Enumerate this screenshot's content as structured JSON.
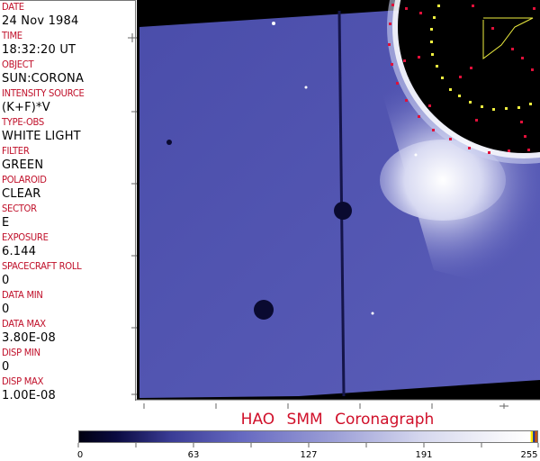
{
  "fields": [
    {
      "label": "DATE",
      "value": "24 Nov 1984"
    },
    {
      "label": "TIME",
      "value": "18:32:20 UT"
    },
    {
      "label": "OBJECT",
      "value": "SUN:CORONA"
    },
    {
      "label": "INTENSITY SOURCE",
      "value": "(K+F)*V"
    },
    {
      "label": "TYPE-OBS",
      "value": "WHITE LIGHT"
    },
    {
      "label": "FILTER",
      "value": "GREEN"
    },
    {
      "label": "POLAROID",
      "value": "CLEAR"
    },
    {
      "label": "SECTOR",
      "value": "E"
    },
    {
      "label": "EXPOSURE",
      "value": "6.144"
    },
    {
      "label": "SPACECRAFT ROLL",
      "value": "0"
    },
    {
      "label": "DATA MIN",
      "value": "0"
    },
    {
      "label": "DATA MAX",
      "value": "3.80E-08"
    },
    {
      "label": "DISP MIN",
      "value": "0"
    },
    {
      "label": "DISP MAX",
      "value": "1.00E-08"
    }
  ],
  "title": "HAO SMM Coronagraph",
  "colorbar": {
    "ticks": [
      "0",
      "63",
      "127",
      "191",
      "255"
    ],
    "min": 0,
    "max": 255
  },
  "colors": {
    "label": "#c0102a",
    "title": "#d0102a",
    "image_blue": "#5558b8",
    "overlay_red": "#e0103a",
    "overlay_yellow": "#f0f040"
  }
}
